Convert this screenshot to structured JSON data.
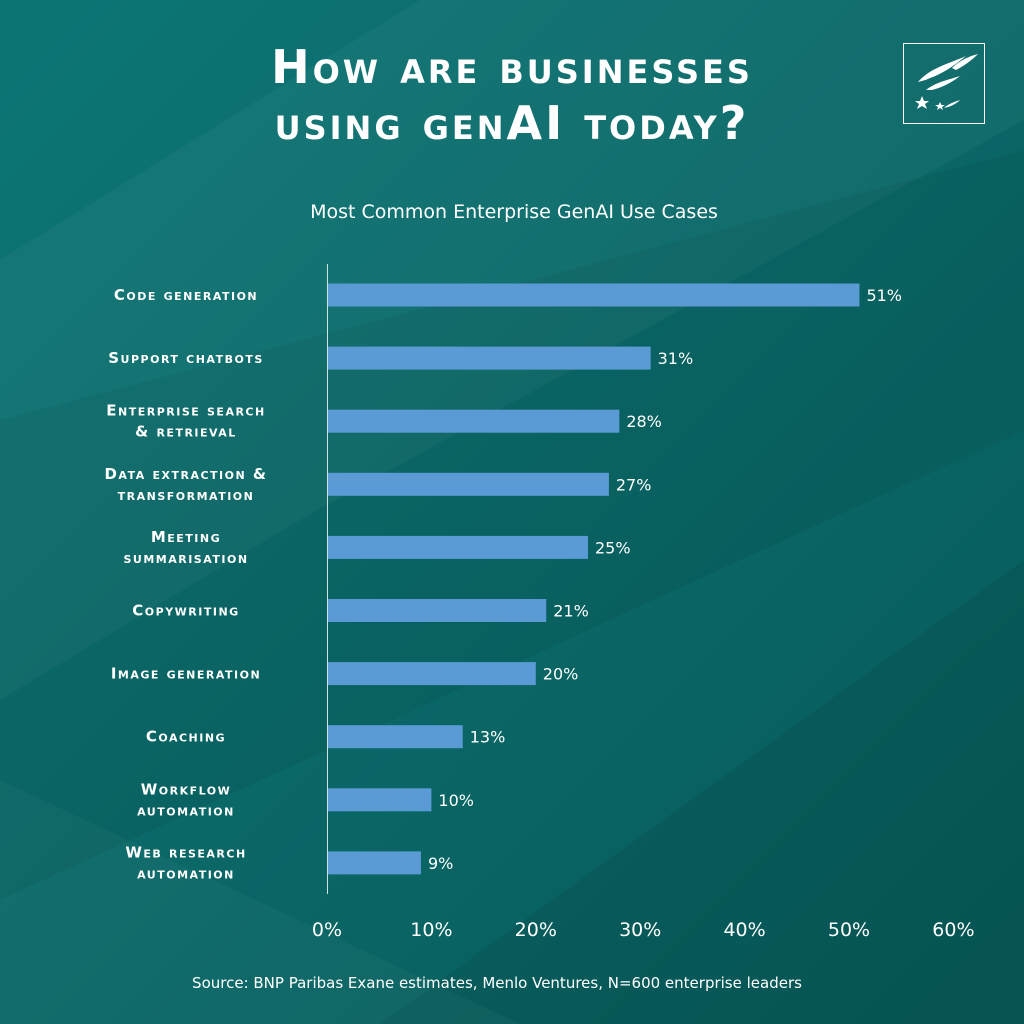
{
  "header": {
    "title_line_1": "How are businesses",
    "title_line_2": "using genAI today?"
  },
  "logo": {
    "icon": "stars-swallows-logo-icon"
  },
  "colors": {
    "background": "#0b6b6a",
    "bar": "#5b9bd5",
    "text": "#ffffff",
    "axis": "#cfe3e3"
  },
  "chart_data": {
    "type": "bar",
    "orientation": "horizontal",
    "title": "Most Common Enterprise GenAI Use Cases",
    "categories": [
      [
        "Code generation"
      ],
      [
        "Support chatbots"
      ],
      [
        "Enterprise search",
        "& retrieval"
      ],
      [
        "Data extraction &",
        "transformation"
      ],
      [
        "Meeting",
        "summarisation"
      ],
      [
        "Copywriting"
      ],
      [
        "Image generation"
      ],
      [
        "Coaching"
      ],
      [
        "Workflow",
        "automation"
      ],
      [
        "Web research",
        "automation"
      ]
    ],
    "values": [
      51,
      31,
      28,
      27,
      25,
      21,
      20,
      13,
      10,
      9
    ],
    "value_labels": [
      "51%",
      "31%",
      "28%",
      "27%",
      "25%",
      "21%",
      "20%",
      "13%",
      "10%",
      "9%"
    ],
    "xlim": [
      0,
      60
    ],
    "xticks": [
      0,
      10,
      20,
      30,
      40,
      50,
      60
    ],
    "xtick_labels": [
      "0%",
      "10%",
      "20%",
      "30%",
      "40%",
      "50%",
      "60%"
    ],
    "grid": false,
    "legend": "none"
  },
  "footer": {
    "source": "Source: BNP Paribas Exane estimates, Menlo Ventures, N=600 enterprise leaders"
  }
}
